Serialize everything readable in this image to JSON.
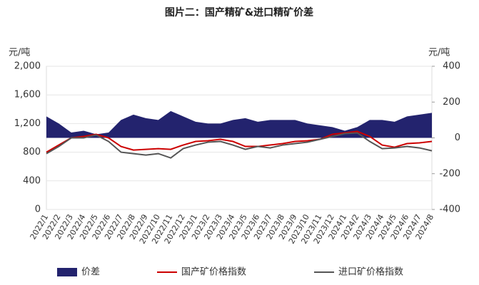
{
  "chart_data": {
    "type": "combo",
    "title": "图片二：国产精矿&进口精矿价差",
    "y_label": "元/吨",
    "y2_label": "元/吨",
    "categories": [
      "2022/1",
      "2022/2",
      "2022/3",
      "2022/4",
      "2022/5",
      "2022/6",
      "2022/7",
      "2022/8",
      "2022/9",
      "2022/10",
      "2022/11",
      "2022/12",
      "2023/1",
      "2023/2",
      "2023/3",
      "2023/4",
      "2023/5",
      "2023/6",
      "2023/7",
      "2023/8",
      "2023/9",
      "2023/10",
      "2023/11",
      "2023/12",
      "2024/1",
      "2024/2",
      "2024/3",
      "2024/4",
      "2024/5",
      "2024/6",
      "2024/7",
      "2024/8"
    ],
    "ylim": [
      0,
      2000
    ],
    "yticks": [
      0,
      400,
      800,
      {
        "value": 1200,
        "label": "1,200"
      },
      {
        "value": 1600,
        "label": "1,600"
      },
      {
        "value": 2000,
        "label": "2,000"
      }
    ],
    "y2lim": [
      -400,
      400
    ],
    "y2ticks": [
      -400,
      -200,
      0,
      200,
      400
    ],
    "series": [
      {
        "name": "价差",
        "type": "area",
        "axis": "y2",
        "color": "#23236e",
        "values": [
          120,
          80,
          30,
          40,
          20,
          30,
          100,
          130,
          110,
          100,
          150,
          120,
          90,
          80,
          80,
          100,
          110,
          90,
          100,
          100,
          100,
          80,
          70,
          60,
          40,
          60,
          100,
          100,
          90,
          120,
          130,
          140
        ]
      },
      {
        "name": "国产矿价格指数",
        "type": "line",
        "color": "#cc0000",
        "values": [
          800,
          900,
          1000,
          1020,
          1050,
          1000,
          880,
          830,
          840,
          850,
          840,
          900,
          950,
          960,
          980,
          950,
          880,
          880,
          900,
          920,
          950,
          960,
          980,
          1050,
          1070,
          1090,
          1020,
          900,
          870,
          920,
          930,
          950
        ]
      },
      {
        "name": "进口矿价格指数",
        "type": "line",
        "color": "#555555",
        "values": [
          780,
          880,
          1000,
          1000,
          1040,
          950,
          800,
          780,
          760,
          780,
          720,
          850,
          900,
          940,
          950,
          900,
          840,
          880,
          860,
          900,
          920,
          940,
          980,
          1020,
          1060,
          1070,
          950,
          850,
          860,
          880,
          860,
          820
        ]
      }
    ]
  }
}
